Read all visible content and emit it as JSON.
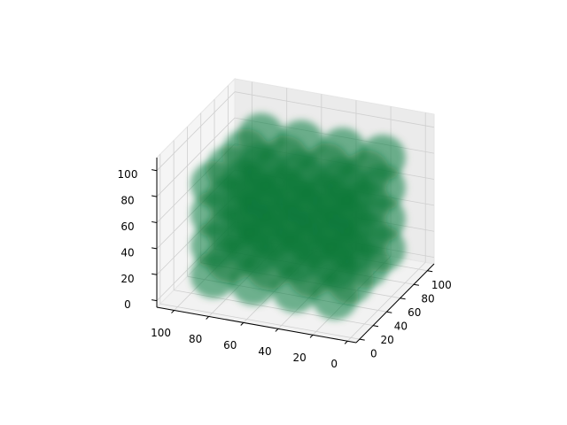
{
  "chart_data": {
    "type": "scatter3d",
    "color": "#0b7a3b",
    "xlim": [
      -5,
      110
    ],
    "ylim": [
      -5,
      110
    ],
    "zlim": [
      -5,
      110
    ],
    "xticks": [
      0,
      20,
      40,
      60,
      80,
      100
    ],
    "yticks": [
      0,
      20,
      40,
      60,
      80,
      100
    ],
    "zticks": [
      0,
      20,
      40,
      60,
      80,
      100
    ],
    "grid": true,
    "x": [
      15,
      15,
      15,
      15,
      15,
      15,
      15,
      15,
      15,
      15,
      15,
      15,
      15,
      15,
      15,
      15,
      38,
      38,
      38,
      38,
      38,
      38,
      38,
      38,
      38,
      38,
      38,
      38,
      38,
      38,
      38,
      38,
      62,
      62,
      62,
      62,
      62,
      62,
      62,
      62,
      62,
      62,
      62,
      62,
      62,
      62,
      62,
      62,
      85,
      85,
      85,
      85,
      85,
      85,
      85,
      85,
      85,
      85,
      85,
      85,
      85,
      85,
      85,
      85
    ],
    "y": [
      15,
      15,
      15,
      15,
      38,
      38,
      38,
      38,
      62,
      62,
      62,
      62,
      85,
      85,
      85,
      85,
      15,
      15,
      15,
      15,
      38,
      38,
      38,
      38,
      62,
      62,
      62,
      62,
      85,
      85,
      85,
      85,
      15,
      15,
      15,
      15,
      38,
      38,
      38,
      38,
      62,
      62,
      62,
      62,
      85,
      85,
      85,
      85,
      15,
      15,
      15,
      15,
      38,
      38,
      38,
      38,
      62,
      62,
      62,
      62,
      85,
      85,
      85,
      85
    ],
    "z": [
      15,
      38,
      62,
      85,
      15,
      38,
      62,
      85,
      15,
      38,
      62,
      85,
      15,
      38,
      62,
      85,
      15,
      38,
      62,
      85,
      15,
      38,
      62,
      85,
      15,
      38,
      62,
      85,
      15,
      38,
      62,
      85,
      15,
      38,
      62,
      85,
      15,
      38,
      62,
      85,
      15,
      38,
      62,
      85,
      15,
      38,
      62,
      85,
      15,
      38,
      62,
      85,
      15,
      38,
      62,
      85,
      15,
      38,
      62,
      85,
      15,
      38,
      62,
      85
    ]
  }
}
